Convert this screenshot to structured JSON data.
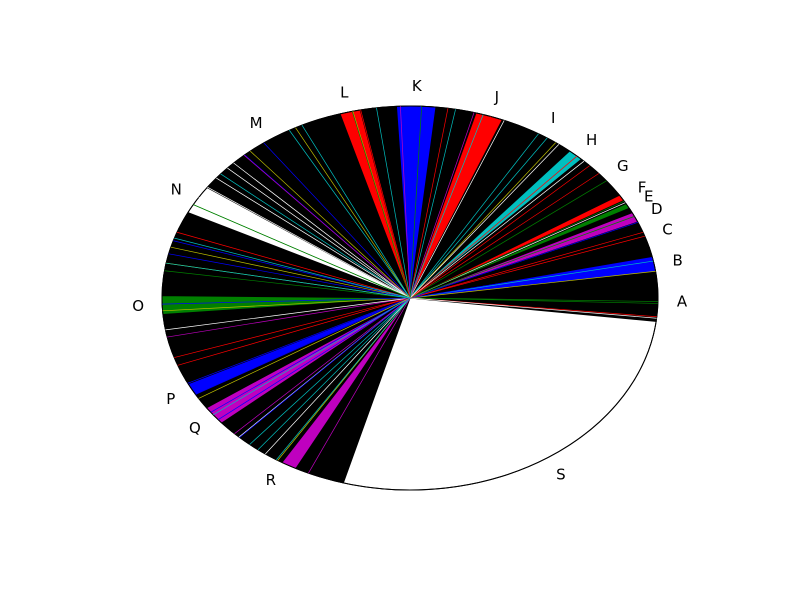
{
  "chart_data": {
    "type": "pie",
    "title": "",
    "start_angle_deg": -7,
    "direction": "counterclockwise",
    "slice_colors": [
      "#000000",
      "#0000ff",
      "#ff0000",
      "#00bfbf",
      "#008000",
      "#bf00bf",
      "#bfbf00",
      "#ffffff"
    ],
    "wedge_edge_color": "#000000",
    "legend": "none",
    "labels": [
      "A",
      "B",
      "C",
      "D",
      "E",
      "F",
      "G",
      "H",
      "I",
      "J",
      "K",
      "L",
      "M",
      "N",
      "O",
      "P",
      "Q",
      "R",
      "S"
    ],
    "slices": [
      {
        "label": "A",
        "value": 2.4,
        "color": "#000000"
      },
      {
        "label": "B",
        "value": 2.0,
        "color": "#0000ff"
      },
      {
        "label": "C",
        "value": 1.4,
        "color": "#000000"
      },
      {
        "label": "D",
        "value": 1.0,
        "color": "#bf00bf"
      },
      {
        "label": "E",
        "value": 0.5,
        "color": "#008000"
      },
      {
        "label": "F",
        "value": 0.6,
        "color": "#ff0000"
      },
      {
        "label": "G",
        "value": 2.2,
        "color": "#000000"
      },
      {
        "label": "H",
        "value": 1.6,
        "color": "#00bfbf"
      },
      {
        "label": "I",
        "value": 2.4,
        "color": "#000000"
      },
      {
        "label": "J",
        "value": 2.8,
        "color": "#ff0000"
      },
      {
        "label": "K",
        "value": 4.0,
        "color": "#0000ff"
      },
      {
        "label": "L",
        "value": 2.1,
        "color": "#ff0000"
      },
      {
        "label": "M",
        "value": 6.0,
        "color": "#000000"
      },
      {
        "label": "N",
        "value": 3.8,
        "color": "#ffffff"
      },
      {
        "label": "O",
        "value": 9.2,
        "color": "#008000"
      },
      {
        "label": "P",
        "value": 1.2,
        "color": "#0000ff"
      },
      {
        "label": "Q",
        "value": 2.5,
        "color": "#bf00bf"
      },
      {
        "label": "R",
        "value": 6.0,
        "color": "#bf00bf"
      },
      {
        "label": "S",
        "value": 19.5,
        "color": "#ffffff"
      }
    ]
  }
}
